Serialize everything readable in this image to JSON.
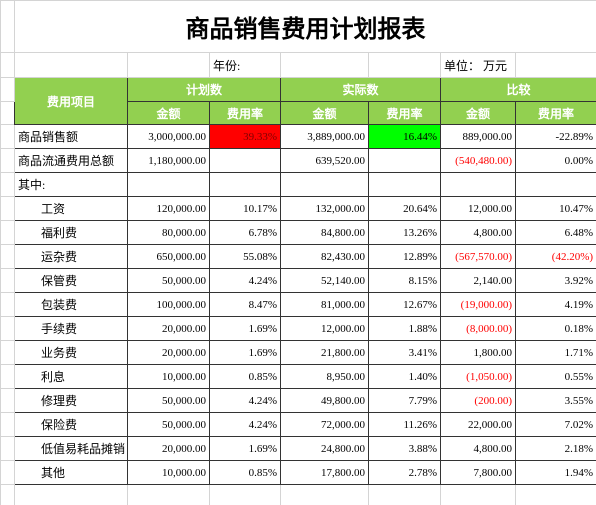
{
  "header": {
    "title": "商品销售费用计划报表",
    "year_label": "年份:",
    "unit_label": "单位：  万元"
  },
  "columns": {
    "item": "费用项目",
    "groups": [
      "计划数",
      "实际数",
      "比较"
    ],
    "subheaders": [
      "金额",
      "费用率",
      "金额",
      "费用率",
      "金额",
      "费用率"
    ]
  },
  "rows": [
    [
      "商品销售额",
      "3,000,000.00",
      "39.33%",
      "3,889,000.00",
      "16.44%",
      "889,000.00",
      "-22.89%"
    ],
    [
      "商品流通费用总额",
      "1,180,000.00",
      null,
      "639,520.00",
      null,
      "(540,480.00)",
      "0.00%"
    ],
    [
      "其中:",
      null,
      null,
      null,
      null,
      null,
      null
    ],
    [
      "工资",
      "120,000.00",
      "10.17%",
      "132,000.00",
      "20.64%",
      "12,000.00",
      "10.47%"
    ],
    [
      "福利费",
      "80,000.00",
      "6.78%",
      "84,800.00",
      "13.26%",
      "4,800.00",
      "6.48%"
    ],
    [
      "运杂费",
      "650,000.00",
      "55.08%",
      "82,430.00",
      "12.89%",
      "(567,570.00)",
      "(42.20%)"
    ],
    [
      "保管费",
      "50,000.00",
      "4.24%",
      "52,140.00",
      "8.15%",
      "2,140.00",
      "3.92%"
    ],
    [
      "包装费",
      "100,000.00",
      "8.47%",
      "81,000.00",
      "12.67%",
      "(19,000.00)",
      "4.19%"
    ],
    [
      "手续费",
      "20,000.00",
      "1.69%",
      "12,000.00",
      "1.88%",
      "(8,000.00)",
      "0.18%"
    ],
    [
      "业务费",
      "20,000.00",
      "1.69%",
      "21,800.00",
      "3.41%",
      "1,800.00",
      "1.71%"
    ],
    [
      "利息",
      "10,000.00",
      "0.85%",
      "8,950.00",
      "1.40%",
      "(1,050.00)",
      "0.55%"
    ],
    [
      "修理费",
      "50,000.00",
      "4.24%",
      "49,800.00",
      "7.79%",
      "(200.00)",
      "3.55%"
    ],
    [
      "保险费",
      "50,000.00",
      "4.24%",
      "72,000.00",
      "11.26%",
      "22,000.00",
      "7.02%"
    ],
    [
      "低值易耗品摊销",
      "20,000.00",
      "1.69%",
      "24,800.00",
      "3.88%",
      "4,800.00",
      "2.18%"
    ],
    [
      "其他",
      "10,000.00",
      "0.85%",
      "17,800.00",
      "2.78%",
      "7,800.00",
      "1.94%"
    ]
  ]
}
